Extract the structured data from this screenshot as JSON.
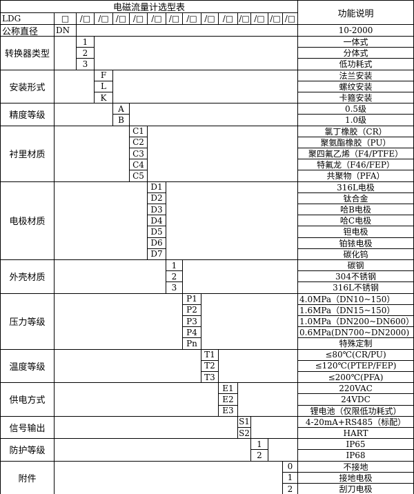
{
  "title": "电磁流量计选型表",
  "function_header": "功能说明",
  "header_row": {
    "model": "LDG",
    "first_slot": "□",
    "slots": [
      "/□",
      "/□",
      "/□",
      "/□",
      "/□",
      "/□",
      "/□",
      "/□",
      "/□",
      "/□",
      "/□",
      "/□",
      "/□"
    ]
  },
  "nominal_diameter": {
    "label": "公称直径",
    "code": "DN",
    "description": "10-2000"
  },
  "groups": [
    {
      "label": "转换器类型",
      "codes": [
        "1",
        "2",
        "3"
      ],
      "descriptions": [
        "一体式",
        "分体式",
        "低功耗式"
      ]
    },
    {
      "label": "安装形式",
      "codes": [
        "F",
        "L",
        "K"
      ],
      "descriptions": [
        "法兰安装",
        "螺纹安装",
        "卡箍安装"
      ]
    },
    {
      "label": "精度等级",
      "codes": [
        "A",
        "B"
      ],
      "descriptions": [
        "0.5级",
        "1.0级"
      ]
    },
    {
      "label": "衬里材质",
      "codes": [
        "C1",
        "C2",
        "C3",
        "C4",
        "C5"
      ],
      "descriptions": [
        "氯丁橡胶（CR）",
        "聚氨酯橡胶（PU）",
        "聚四氟乙烯（F4/PTFE）",
        "特氟龙（F46/FEP）",
        "共聚物（PFA）"
      ]
    },
    {
      "label": "电极材质",
      "codes": [
        "D1",
        "D2",
        "D3",
        "D4",
        "D5",
        "D6",
        "D7"
      ],
      "descriptions": [
        "316L电极",
        "钛合金",
        "哈B电极",
        "哈C电极",
        "钽电极",
        "铂铱电极",
        "碳化钨"
      ]
    },
    {
      "label": "外壳材质",
      "codes": [
        "1",
        "2",
        "3"
      ],
      "descriptions": [
        "碳钢",
        "304不锈钢",
        "316L不锈钢"
      ]
    },
    {
      "label": "压力等级",
      "codes": [
        "P1",
        "P2",
        "P3",
        "P4",
        "Pn"
      ],
      "descriptions": [
        "4.0MPa（DN10~150）",
        "1.6MPa（DN15~150）",
        "1.0MPa（DN200~DN600）",
        "0.6MPa(DN700~DN2000)",
        "特殊定制"
      ]
    },
    {
      "label": "温度等级",
      "codes": [
        "T1",
        "T2",
        "T3"
      ],
      "descriptions": [
        "≤80℃(CR/PU)",
        "≤120℃(PTEP/FEP)",
        "≤200℃(PFA)"
      ]
    },
    {
      "label": "供电方式",
      "codes": [
        "E1",
        "E2",
        "E3"
      ],
      "descriptions": [
        "220VAC",
        "24VDC",
        "锂电池（仅限低功耗式）"
      ]
    },
    {
      "label": "信号输出",
      "codes": [
        "S1",
        "S2"
      ],
      "descriptions": [
        "4-20mA+RS485（标配）",
        "HART"
      ]
    },
    {
      "label": "防护等级",
      "codes": [
        "1",
        "2"
      ],
      "descriptions": [
        "IP65",
        "IP68"
      ]
    },
    {
      "label": "附件",
      "codes": [
        "0",
        "1",
        "2"
      ],
      "descriptions": [
        "不接地",
        "接地电极",
        "刮刀电极"
      ]
    }
  ]
}
